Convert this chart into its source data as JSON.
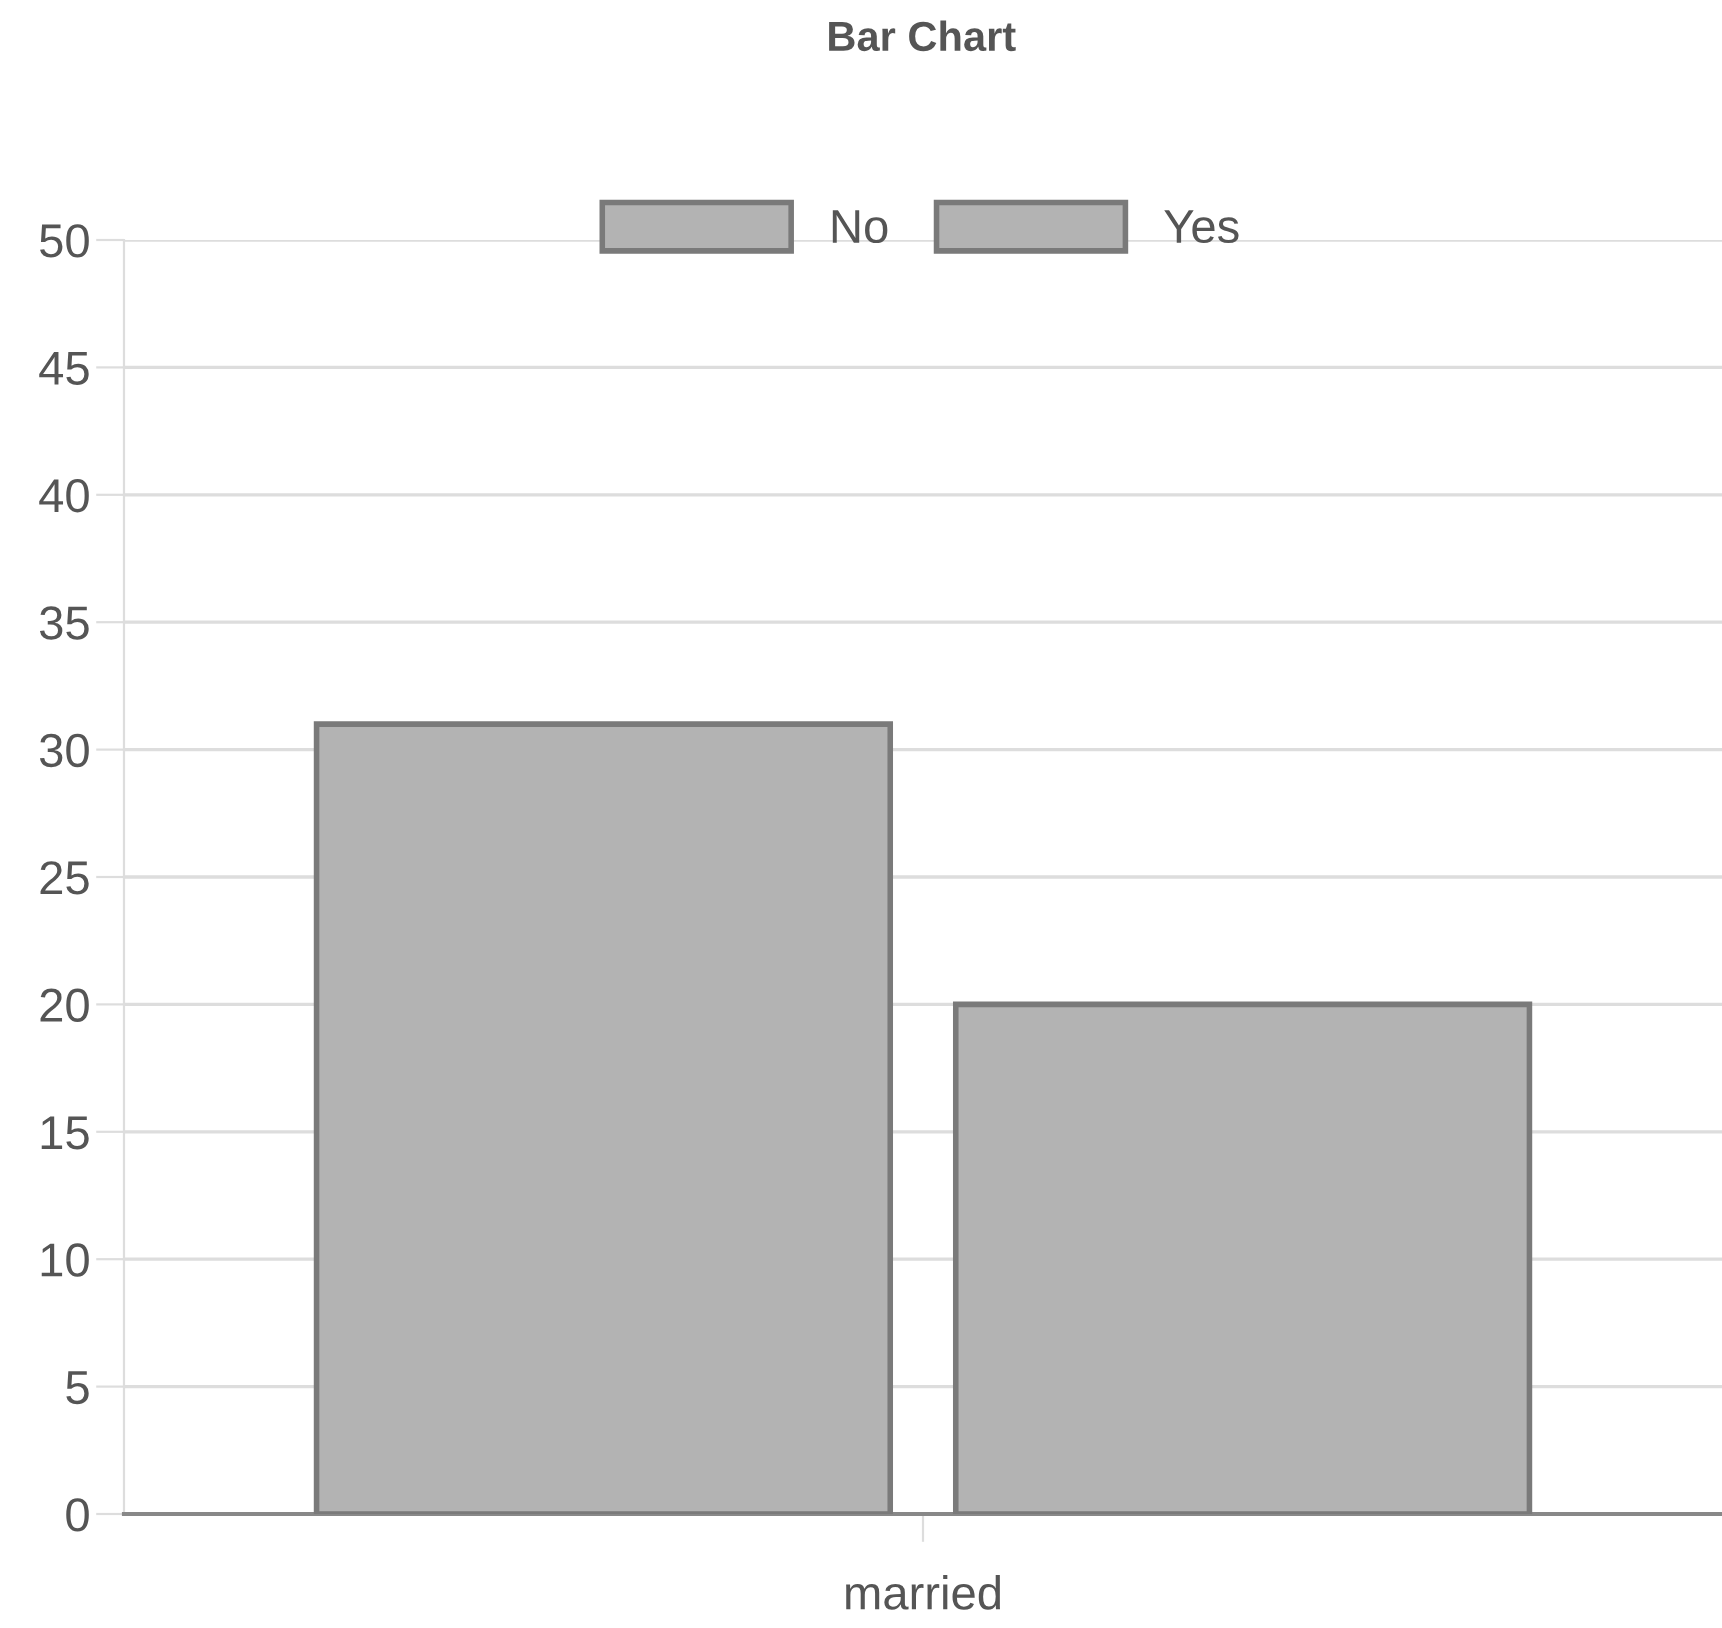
{
  "chart_data": {
    "type": "bar",
    "title": "Bar Chart",
    "categories": [
      "married"
    ],
    "series": [
      {
        "name": "No",
        "color": "#b3b3b3",
        "values": [
          31
        ]
      },
      {
        "name": "Yes",
        "color": "#b3b3b3",
        "values": [
          20
        ]
      }
    ],
    "ylim": [
      0,
      50
    ],
    "yticks": [
      0,
      5,
      10,
      15,
      20,
      25,
      30,
      35,
      40,
      45,
      50
    ],
    "grid": "y",
    "legend": "top"
  }
}
